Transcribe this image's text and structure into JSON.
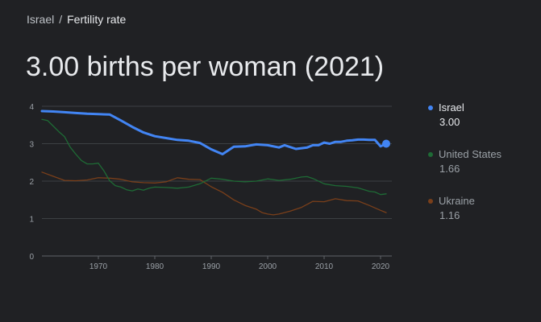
{
  "breadcrumb": {
    "country": "Israel",
    "separator": "/",
    "current": "Fertility rate"
  },
  "headline": "3.00 births per woman (2021)",
  "legend": [
    {
      "name": "Israel",
      "value": "3.00",
      "color": "#4285f4",
      "active": true
    },
    {
      "name": "United States",
      "value": "1.66",
      "color": "#1e6b35",
      "active": false
    },
    {
      "name": "Ukraine",
      "value": "1.16",
      "color": "#7a3f1a",
      "active": false
    }
  ],
  "chart_data": {
    "type": "line",
    "xlim": [
      1960,
      2022
    ],
    "ylim": [
      0,
      4
    ],
    "yticks": [
      0,
      1,
      2,
      3,
      4
    ],
    "xticks": [
      1970,
      1980,
      1990,
      2000,
      2010,
      2020
    ],
    "grid": true,
    "legend_position": "right",
    "series": [
      {
        "name": "Israel",
        "color": "#4285f4",
        "x": [
          1960,
          1962,
          1964,
          1966,
          1968,
          1970,
          1972,
          1974,
          1976,
          1978,
          1980,
          1982,
          1984,
          1986,
          1988,
          1990,
          1992,
          1994,
          1996,
          1998,
          2000,
          2002,
          2003,
          2005,
          2007,
          2008,
          2009,
          2010,
          2011,
          2012,
          2013,
          2014,
          2015,
          2016,
          2017,
          2018,
          2019,
          2020,
          2021
        ],
        "y": [
          3.87,
          3.86,
          3.84,
          3.82,
          3.8,
          3.79,
          3.78,
          3.62,
          3.45,
          3.3,
          3.2,
          3.15,
          3.1,
          3.08,
          3.02,
          2.85,
          2.72,
          2.92,
          2.93,
          2.98,
          2.96,
          2.9,
          2.96,
          2.86,
          2.9,
          2.96,
          2.96,
          3.03,
          3.0,
          3.05,
          3.05,
          3.08,
          3.09,
          3.11,
          3.11,
          3.1,
          3.1,
          2.93,
          3.0
        ]
      },
      {
        "name": "United States",
        "color": "#1e6b35",
        "x": [
          1960,
          1961,
          1962,
          1963,
          1964,
          1965,
          1966,
          1967,
          1968,
          1969,
          1970,
          1971,
          1972,
          1973,
          1974,
          1975,
          1976,
          1977,
          1978,
          1979,
          1980,
          1982,
          1984,
          1986,
          1988,
          1990,
          1992,
          1994,
          1996,
          1998,
          2000,
          2002,
          2004,
          2006,
          2007,
          2008,
          2010,
          2012,
          2014,
          2016,
          2018,
          2019,
          2020,
          2021
        ],
        "y": [
          3.65,
          3.62,
          3.47,
          3.32,
          3.19,
          2.91,
          2.72,
          2.55,
          2.46,
          2.46,
          2.48,
          2.27,
          2.01,
          1.88,
          1.84,
          1.77,
          1.74,
          1.79,
          1.76,
          1.81,
          1.84,
          1.83,
          1.81,
          1.84,
          1.93,
          2.08,
          2.05,
          2.0,
          1.98,
          2.0,
          2.06,
          2.02,
          2.05,
          2.11,
          2.12,
          2.07,
          1.93,
          1.88,
          1.86,
          1.82,
          1.73,
          1.71,
          1.64,
          1.66
        ]
      },
      {
        "name": "Ukraine",
        "color": "#7a3f1a",
        "x": [
          1960,
          1962,
          1964,
          1966,
          1968,
          1970,
          1972,
          1974,
          1976,
          1978,
          1980,
          1982,
          1984,
          1986,
          1988,
          1990,
          1992,
          1994,
          1996,
          1998,
          1999,
          2000,
          2001,
          2002,
          2004,
          2006,
          2008,
          2010,
          2012,
          2014,
          2016,
          2018,
          2020,
          2021
        ],
        "y": [
          2.24,
          2.13,
          2.02,
          2.01,
          2.03,
          2.09,
          2.08,
          2.05,
          1.98,
          1.96,
          1.95,
          1.98,
          2.09,
          2.05,
          2.04,
          1.85,
          1.7,
          1.5,
          1.35,
          1.25,
          1.16,
          1.12,
          1.1,
          1.12,
          1.2,
          1.3,
          1.46,
          1.45,
          1.53,
          1.48,
          1.47,
          1.35,
          1.22,
          1.16
        ]
      }
    ]
  }
}
